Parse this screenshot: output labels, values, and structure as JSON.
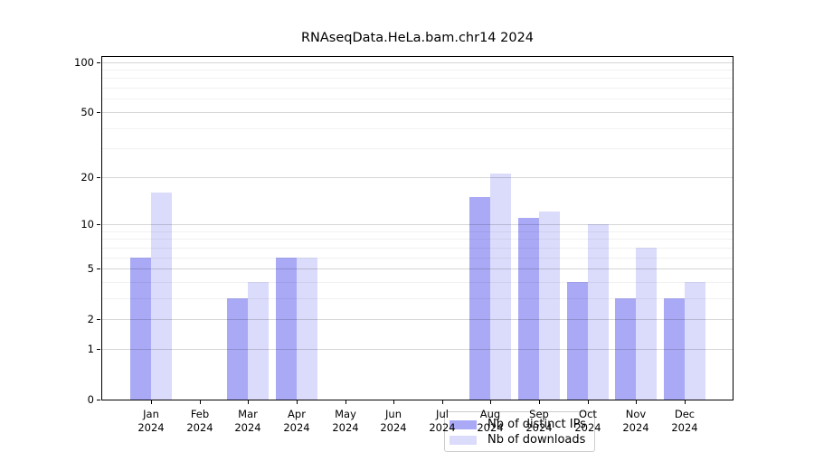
{
  "chart_data": {
    "type": "bar",
    "title": "RNAseqData.HeLa.bam.chr14 2024",
    "xlabel": "",
    "ylabel": "",
    "categories": [
      "Jan",
      "Feb",
      "Mar",
      "Apr",
      "May",
      "Jun",
      "Jul",
      "Aug",
      "Sep",
      "Oct",
      "Nov",
      "Dec"
    ],
    "year_label": "2024",
    "series": [
      {
        "name": "Nb of distinct IPs",
        "color": "#a9a9f6",
        "values": [
          6,
          0,
          3,
          6,
          0,
          0,
          0,
          15,
          11,
          4,
          3,
          3
        ]
      },
      {
        "name": "Nb of downloads",
        "color": "#dbdbfb",
        "values": [
          16,
          0,
          4,
          6,
          0,
          0,
          0,
          21,
          12,
          10,
          7,
          4
        ]
      }
    ],
    "yscale": "log1p",
    "ylim": [
      0,
      110
    ],
    "yticks": [
      0,
      1,
      2,
      5,
      10,
      20,
      50,
      100
    ],
    "yminorticks": [
      3,
      4,
      6,
      7,
      8,
      9,
      30,
      40,
      60,
      70,
      80,
      90
    ],
    "grid": "on",
    "legend_position": "lower center"
  },
  "colors": {
    "background": "#ffffff",
    "axis": "#000000",
    "grid_major": "#d4d4d4",
    "grid_minor": "#efefef",
    "legend_border": "#cccccc"
  }
}
